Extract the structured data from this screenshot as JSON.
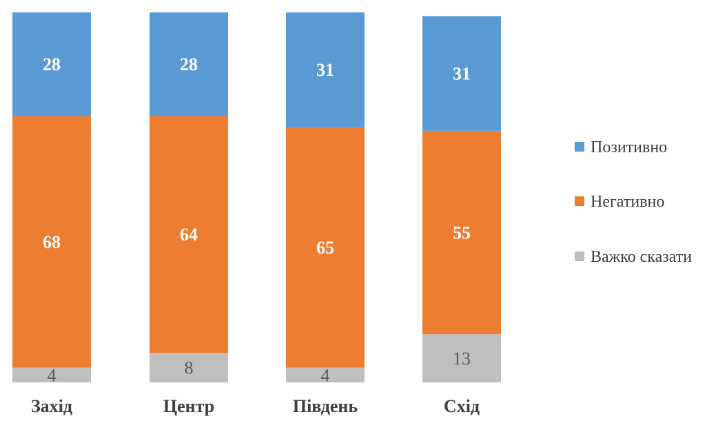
{
  "chart_data": {
    "type": "bar",
    "stacked": true,
    "categories": [
      "Захід",
      "Центр",
      "Південь",
      "Схід"
    ],
    "series": [
      {
        "name": "Важко сказати",
        "color": "#BFBFBF",
        "values": [
          4,
          8,
          4,
          13
        ]
      },
      {
        "name": "Негативно",
        "color": "#ED7D31",
        "values": [
          68,
          64,
          65,
          55
        ]
      },
      {
        "name": "Позитивно",
        "color": "#5B9BD5",
        "values": [
          28,
          28,
          31,
          31
        ]
      }
    ],
    "legend_order": [
      "Позитивно",
      "Негативно",
      "Важко сказати"
    ],
    "legend_position": "right",
    "ylim": [
      0,
      100
    ],
    "grid": false,
    "title": "",
    "xlabel": "",
    "ylabel": ""
  }
}
